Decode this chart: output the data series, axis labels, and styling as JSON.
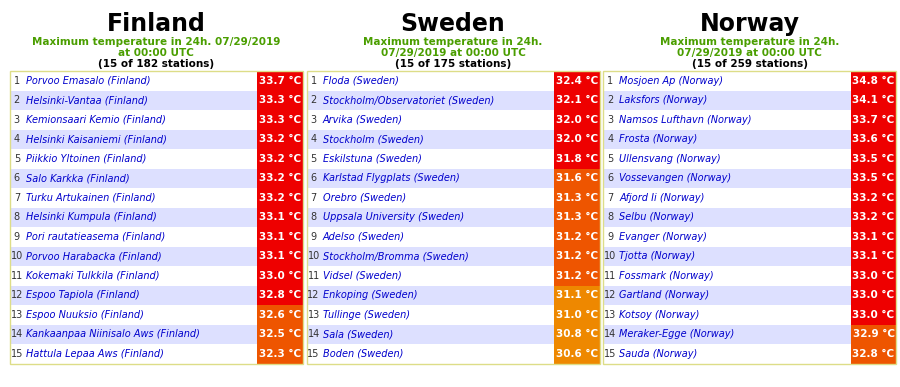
{
  "finland": {
    "title": "Finland",
    "subtitle_line1": "Maximum temperature in 24h. 07/29/2019",
    "subtitle_line2": "at 00:00 UTC",
    "subtitle_line3": "(15 of 182 stations)",
    "stations": [
      {
        "rank": 1,
        "name": "Porvoo Emasalo (Finland)",
        "temp": "33.7 °C"
      },
      {
        "rank": 2,
        "name": "Helsinki-Vantaa (Finland)",
        "temp": "33.3 °C"
      },
      {
        "rank": 3,
        "name": "Kemionsaari Kemio (Finland)",
        "temp": "33.3 °C"
      },
      {
        "rank": 4,
        "name": "Helsinki Kaisaniemi (Finland)",
        "temp": "33.2 °C"
      },
      {
        "rank": 5,
        "name": "Piikkio Yltoinen (Finland)",
        "temp": "33.2 °C"
      },
      {
        "rank": 6,
        "name": "Salo Karkka (Finland)",
        "temp": "33.2 °C"
      },
      {
        "rank": 7,
        "name": "Turku Artukainen (Finland)",
        "temp": "33.2 °C"
      },
      {
        "rank": 8,
        "name": "Helsinki Kumpula (Finland)",
        "temp": "33.1 °C"
      },
      {
        "rank": 9,
        "name": "Pori rautatieasema (Finland)",
        "temp": "33.1 °C"
      },
      {
        "rank": 10,
        "name": "Porvoo Harabacka (Finland)",
        "temp": "33.1 °C"
      },
      {
        "rank": 11,
        "name": "Kokemaki Tulkkila (Finland)",
        "temp": "33.0 °C"
      },
      {
        "rank": 12,
        "name": "Espoo Tapiola (Finland)",
        "temp": "32.8 °C"
      },
      {
        "rank": 13,
        "name": "Espoo Nuuksio (Finland)",
        "temp": "32.6 °C"
      },
      {
        "rank": 14,
        "name": "Kankaanpaa Niinisalo Aws (Finland)",
        "temp": "32.5 °C"
      },
      {
        "rank": 15,
        "name": "Hattula Lepaa Aws (Finland)",
        "temp": "32.3 °C"
      }
    ],
    "alternating_rows": [
      1,
      3,
      5,
      7,
      9,
      11,
      13,
      15
    ]
  },
  "sweden": {
    "title": "Sweden",
    "subtitle_line1": "Maximum temperature in 24h.",
    "subtitle_line2": "07/29/2019 at 00:00 UTC",
    "subtitle_line3": "(15 of 175 stations)",
    "stations": [
      {
        "rank": 1,
        "name": "Floda (Sweden)",
        "temp": "32.4 °C"
      },
      {
        "rank": 2,
        "name": "Stockholm/Observatoriet (Sweden)",
        "temp": "32.1 °C"
      },
      {
        "rank": 3,
        "name": "Arvika (Sweden)",
        "temp": "32.0 °C"
      },
      {
        "rank": 4,
        "name": "Stockholm (Sweden)",
        "temp": "32.0 °C"
      },
      {
        "rank": 5,
        "name": "Eskilstuna (Sweden)",
        "temp": "31.8 °C"
      },
      {
        "rank": 6,
        "name": "Karlstad Flygplats (Sweden)",
        "temp": "31.6 °C"
      },
      {
        "rank": 7,
        "name": "Orebro (Sweden)",
        "temp": "31.3 °C"
      },
      {
        "rank": 8,
        "name": "Uppsala University (Sweden)",
        "temp": "31.3 °C"
      },
      {
        "rank": 9,
        "name": "Adelso (Sweden)",
        "temp": "31.2 °C"
      },
      {
        "rank": 10,
        "name": "Stockholm/Bromma (Sweden)",
        "temp": "31.2 °C"
      },
      {
        "rank": 11,
        "name": "Vidsel (Sweden)",
        "temp": "31.2 °C"
      },
      {
        "rank": 12,
        "name": "Enkoping (Sweden)",
        "temp": "31.1 °C"
      },
      {
        "rank": 13,
        "name": "Tullinge (Sweden)",
        "temp": "31.0 °C"
      },
      {
        "rank": 14,
        "name": "Sala (Sweden)",
        "temp": "30.8 °C"
      },
      {
        "rank": 15,
        "name": "Boden (Sweden)",
        "temp": "30.6 °C"
      }
    ],
    "alternating_rows": [
      1,
      3,
      5,
      7,
      9,
      11,
      13,
      15
    ]
  },
  "norway": {
    "title": "Norway",
    "subtitle_line1": "Maximum temperature in 24h.",
    "subtitle_line2": "07/29/2019 at 00:00 UTC",
    "subtitle_line3": "(15 of 259 stations)",
    "stations": [
      {
        "rank": 1,
        "name": "Mosjoen Ap (Norway)",
        "temp": "34.8 °C"
      },
      {
        "rank": 2,
        "name": "Laksfors (Norway)",
        "temp": "34.1 °C"
      },
      {
        "rank": 3,
        "name": "Namsos Lufthavn (Norway)",
        "temp": "33.7 °C"
      },
      {
        "rank": 4,
        "name": "Frosta (Norway)",
        "temp": "33.6 °C"
      },
      {
        "rank": 5,
        "name": "Ullensvang (Norway)",
        "temp": "33.5 °C"
      },
      {
        "rank": 6,
        "name": "Vossevangen (Norway)",
        "temp": "33.5 °C"
      },
      {
        "rank": 7,
        "name": "Afjord Ii (Norway)",
        "temp": "33.2 °C"
      },
      {
        "rank": 8,
        "name": "Selbu (Norway)",
        "temp": "33.2 °C"
      },
      {
        "rank": 9,
        "name": "Evanger (Norway)",
        "temp": "33.1 °C"
      },
      {
        "rank": 10,
        "name": "Tjotta (Norway)",
        "temp": "33.1 °C"
      },
      {
        "rank": 11,
        "name": "Fossmark (Norway)",
        "temp": "33.0 °C"
      },
      {
        "rank": 12,
        "name": "Gartland (Norway)",
        "temp": "33.0 °C"
      },
      {
        "rank": 13,
        "name": "Kotsoy (Norway)",
        "temp": "33.0 °C"
      },
      {
        "rank": 14,
        "name": "Meraker-Egge (Norway)",
        "temp": "32.9 °C"
      },
      {
        "rank": 15,
        "name": "Sauda (Norway)",
        "temp": "32.8 °C"
      }
    ],
    "alternating_rows": [
      1,
      3,
      5,
      7,
      9,
      11,
      13,
      15
    ]
  },
  "colors": {
    "title_color": "#000000",
    "subtitle_color": "#4a9e00",
    "subtitle3_color": "#000000",
    "name_link_color": "#0000cc",
    "temp_text_color": "#ffffff",
    "temp_bg_high": "#ee0000",
    "temp_bg_mid": "#ee5500",
    "temp_bg_low": "#ee8800",
    "row_alt_bg": "#dde0ff",
    "row_normal_bg": "#ffffff",
    "border_color": "#dddd88",
    "background": "#ffffff"
  },
  "finland_temp_colors": [
    "#ee0000",
    "#ee0000",
    "#ee0000",
    "#ee0000",
    "#ee0000",
    "#ee0000",
    "#ee0000",
    "#ee0000",
    "#ee0000",
    "#ee0000",
    "#ee0000",
    "#ee0000",
    "#ee5500",
    "#ee5500",
    "#ee5500"
  ],
  "sweden_temp_colors": [
    "#ee0000",
    "#ee0000",
    "#ee0000",
    "#ee0000",
    "#ee0000",
    "#ee5500",
    "#ee5500",
    "#ee5500",
    "#ee5500",
    "#ee5500",
    "#ee5500",
    "#ee8800",
    "#ee8800",
    "#ee8800",
    "#ee8800"
  ],
  "norway_temp_colors": [
    "#ee0000",
    "#ee0000",
    "#ee0000",
    "#ee0000",
    "#ee0000",
    "#ee0000",
    "#ee0000",
    "#ee0000",
    "#ee0000",
    "#ee0000",
    "#ee0000",
    "#ee0000",
    "#ee0000",
    "#ee5500",
    "#ee5500"
  ]
}
